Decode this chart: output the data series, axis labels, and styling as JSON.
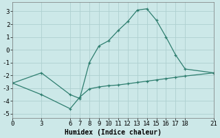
{
  "line1_x": [
    0,
    3,
    6,
    7,
    8,
    9,
    10,
    11,
    12,
    13,
    14,
    15,
    16,
    17,
    18,
    21
  ],
  "line1_y": [
    -2.6,
    -1.8,
    -3.5,
    -3.8,
    -1.0,
    0.3,
    0.7,
    1.5,
    2.2,
    3.1,
    3.2,
    2.3,
    1.0,
    -0.4,
    -1.5,
    -1.8
  ],
  "line2_x": [
    0,
    3,
    6,
    7,
    8,
    9,
    10,
    11,
    12,
    13,
    14,
    15,
    16,
    17,
    18,
    21
  ],
  "line2_y": [
    -2.6,
    -3.5,
    -4.6,
    -3.7,
    -3.05,
    -2.9,
    -2.8,
    -2.75,
    -2.65,
    -2.55,
    -2.45,
    -2.35,
    -2.25,
    -2.15,
    -2.05,
    -1.8
  ],
  "color": "#2d7d6e",
  "bg_color": "#cce8e8",
  "grid_color": "#aed0d0",
  "xlabel": "Humidex (Indice chaleur)",
  "xticks": [
    0,
    3,
    6,
    7,
    8,
    9,
    10,
    11,
    12,
    13,
    14,
    15,
    16,
    17,
    18,
    21
  ],
  "yticks": [
    -5,
    -4,
    -3,
    -2,
    -1,
    0,
    1,
    2,
    3
  ],
  "xlim": [
    0,
    21
  ],
  "ylim": [
    -5.3,
    3.7
  ],
  "label_fontsize": 7,
  "tick_fontsize": 6.5,
  "marker": "+"
}
